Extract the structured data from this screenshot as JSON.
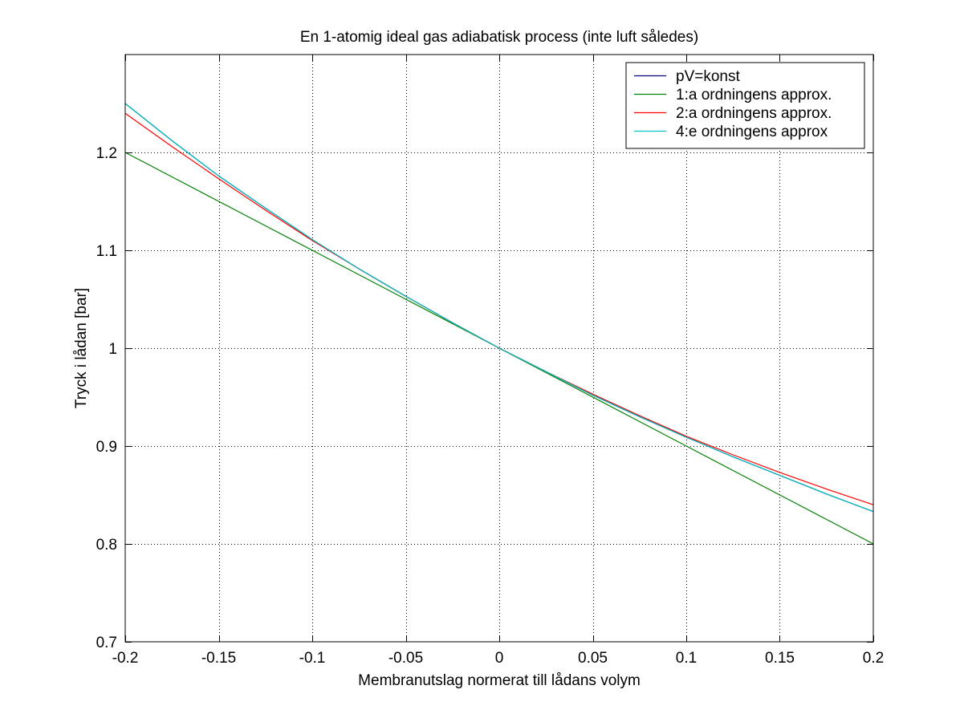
{
  "chart_data": {
    "type": "line",
    "title": "En 1-atomig ideal gas adiabatisk process (inte luft således)",
    "xlabel": "Membranutslag normerat till lådans volym",
    "ylabel": "Tryck i lådan [bar]",
    "xlim": [
      -0.2,
      0.2
    ],
    "ylim": [
      0.7,
      1.3
    ],
    "xticks": [
      -0.2,
      -0.15,
      -0.1,
      -0.05,
      0,
      0.05,
      0.1,
      0.15,
      0.2
    ],
    "xtick_labels": [
      "-0.2",
      "-0.15",
      "-0.1",
      "-0.05",
      "0",
      "0.05",
      "0.1",
      "0.15",
      "0.2"
    ],
    "yticks": [
      0.7,
      0.8,
      0.9,
      1.0,
      1.1,
      1.2
    ],
    "ytick_labels": [
      "0.7",
      "0.8",
      "0.9",
      "1",
      "1.1",
      "1.2"
    ],
    "grid": true,
    "legend_position": "top-right",
    "x": [
      -0.2,
      -0.175,
      -0.15,
      -0.125,
      -0.1,
      -0.075,
      -0.05,
      -0.025,
      0,
      0.025,
      0.05,
      0.075,
      0.1,
      0.125,
      0.15,
      0.175,
      0.2
    ],
    "series": [
      {
        "name": "pV=konst",
        "color": "#00007f",
        "values": [
          1.25,
          1.212,
          1.176,
          1.143,
          1.111,
          1.081,
          1.053,
          1.026,
          1.0,
          0.976,
          0.952,
          0.93,
          0.909,
          0.889,
          0.87,
          0.851,
          0.833
        ]
      },
      {
        "name": "1:a ordningens approx.",
        "color": "#007f00",
        "values": [
          1.2,
          1.175,
          1.15,
          1.125,
          1.1,
          1.075,
          1.05,
          1.025,
          1.0,
          0.975,
          0.95,
          0.925,
          0.9,
          0.875,
          0.85,
          0.825,
          0.8
        ]
      },
      {
        "name": "2:a ordningens approx.",
        "color": "#ff0000",
        "values": [
          1.24,
          1.206,
          1.173,
          1.141,
          1.11,
          1.081,
          1.053,
          1.026,
          1.0,
          0.976,
          0.953,
          0.931,
          0.91,
          0.891,
          0.873,
          0.856,
          0.84
        ]
      },
      {
        "name": "4:e ordningens approx",
        "color": "#00bfbf",
        "values": [
          1.25,
          1.212,
          1.176,
          1.143,
          1.111,
          1.081,
          1.053,
          1.026,
          1.0,
          0.976,
          0.952,
          0.93,
          0.909,
          0.889,
          0.87,
          0.851,
          0.833
        ]
      }
    ]
  }
}
